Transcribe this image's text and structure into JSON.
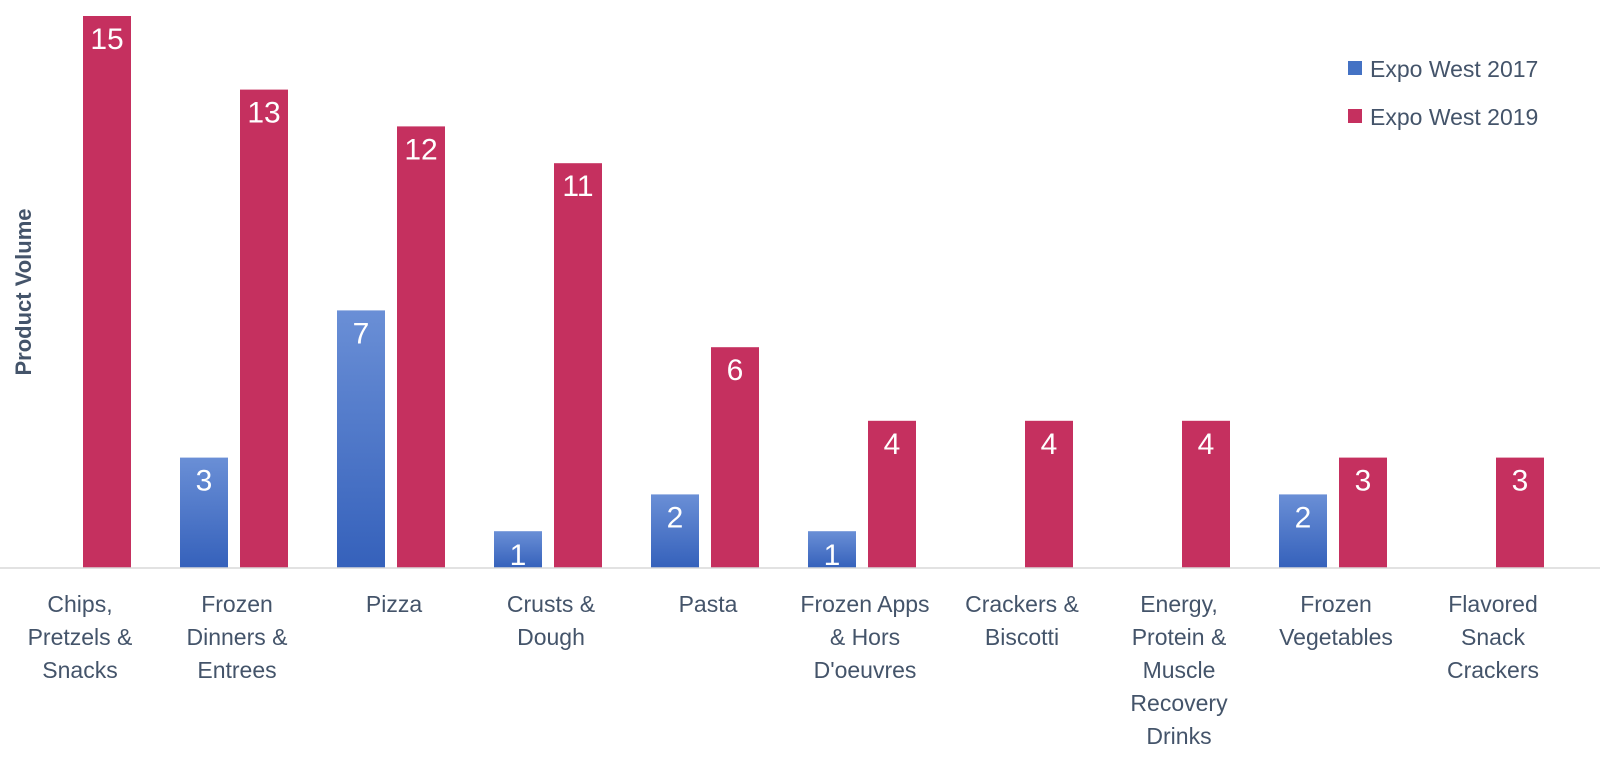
{
  "chart_data": {
    "type": "bar",
    "title": "",
    "xlabel": "",
    "ylabel": "Product Volume",
    "ylim": [
      0,
      15
    ],
    "grid": false,
    "legend_position": "top-right",
    "categories": [
      "Chips, Pretzels & Snacks",
      "Frozen Dinners & Entrees",
      "Pizza",
      "Crusts & Dough",
      "Pasta",
      "Frozen Apps & Hors D'oeuvres",
      "Crackers & Biscotti",
      "Energy, Protein & Muscle Recovery Drinks",
      "Frozen Vegetables",
      "Flavored Snack Crackers"
    ],
    "category_lines": [
      [
        "Chips,",
        "Pretzels &",
        "Snacks"
      ],
      [
        "Frozen",
        "Dinners &",
        "Entrees"
      ],
      [
        "Pizza"
      ],
      [
        "Crusts &",
        "Dough"
      ],
      [
        "Pasta"
      ],
      [
        "Frozen Apps",
        "& Hors",
        "D'oeuvres"
      ],
      [
        "Crackers &",
        "Biscotti"
      ],
      [
        "Energy,",
        "Protein &",
        "Muscle",
        "Recovery",
        "Drinks"
      ],
      [
        "Frozen",
        "Vegetables"
      ],
      [
        "Flavored",
        "Snack",
        "Crackers"
      ]
    ],
    "series": [
      {
        "name": "Expo West 2017",
        "color": "#4472c4",
        "values": [
          null,
          3,
          7,
          1,
          2,
          1,
          null,
          null,
          2,
          null
        ]
      },
      {
        "name": "Expo West 2019",
        "color": "#c5305f",
        "values": [
          15,
          13,
          12,
          11,
          6,
          4,
          4,
          4,
          3,
          3
        ]
      }
    ]
  }
}
